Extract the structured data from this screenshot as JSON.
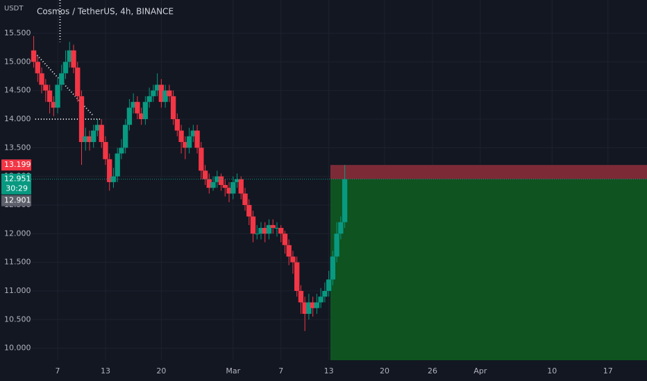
{
  "chart_data": {
    "type": "candlestick",
    "title": "Cosmos / TetherUS, 4h, BINANCE",
    "y_unit": "USDT",
    "up_color": "#089981",
    "down_color": "#f23645",
    "grid": true,
    "xlim": [
      3.69,
      80.9
    ],
    "ylim": [
      9.79,
      16.08
    ],
    "xticks": [
      7,
      13,
      20,
      {
        "value": 29,
        "label": "Mar"
      },
      {
        "value": 35,
        "label": "7"
      },
      {
        "value": 41,
        "label": "13"
      },
      {
        "value": 48,
        "label": "20"
      },
      {
        "value": 54,
        "label": "26"
      },
      {
        "value": 60,
        "label": "Apr"
      },
      {
        "value": 69,
        "label": "10"
      },
      {
        "value": 76,
        "label": "17"
      }
    ],
    "yticks": [
      {
        "value": 10,
        "label": "10.000"
      },
      {
        "value": 10.5,
        "label": "10.500"
      },
      {
        "value": 11,
        "label": "11.000"
      },
      {
        "value": 11.5,
        "label": "11.500"
      },
      {
        "value": 12,
        "label": "12.000"
      },
      {
        "value": 12.5,
        "label": "12.500"
      },
      {
        "value": 13,
        "label": "13.000"
      },
      {
        "value": 13.5,
        "label": "13.500"
      },
      {
        "value": 14,
        "label": "14.000"
      },
      {
        "value": 14.5,
        "label": "14.500"
      },
      {
        "value": 15,
        "label": "15.000"
      },
      {
        "value": 15.5,
        "label": "15.500"
      }
    ],
    "candles": {
      "x": [
        4,
        4.5,
        5,
        5.5,
        6,
        6.5,
        7,
        7.5,
        8,
        8.5,
        9,
        9.5,
        10,
        10.5,
        11,
        11.5,
        12,
        12.5,
        13,
        13.5,
        14,
        14.5,
        15,
        15.5,
        16,
        16.5,
        17,
        17.5,
        18,
        18.5,
        19,
        19.5,
        20,
        20.5,
        21,
        21.5,
        22,
        22.5,
        23,
        23.5,
        24,
        24.5,
        25,
        25.5,
        26,
        26.5,
        27,
        27.5,
        28,
        28.5,
        29,
        29.5,
        30,
        30.5,
        31,
        31.5,
        32,
        32.5,
        33,
        33.5,
        34,
        34.5,
        35,
        35.5,
        36,
        36.5,
        37,
        37.5,
        38,
        38.5,
        39,
        39.5,
        40,
        40.5,
        41,
        41.5,
        42,
        42.5,
        43
      ],
      "open": [
        15.2,
        15.0,
        14.8,
        14.6,
        14.5,
        14.3,
        14.2,
        14.6,
        14.8,
        15.0,
        15.2,
        14.9,
        14.4,
        13.6,
        13.7,
        13.6,
        13.8,
        13.9,
        13.6,
        13.3,
        12.9,
        13.0,
        13.4,
        13.5,
        13.9,
        14.2,
        14.3,
        14.1,
        14.0,
        14.3,
        14.4,
        14.5,
        14.6,
        14.3,
        14.5,
        14.4,
        14.0,
        13.8,
        13.6,
        13.5,
        13.7,
        13.8,
        13.5,
        13.1,
        12.95,
        12.8,
        12.9,
        13.0,
        12.85,
        12.8,
        12.7,
        12.9,
        12.95,
        12.7,
        12.5,
        12.3,
        12.0,
        12.0,
        12.1,
        12.0,
        12.15,
        12.1,
        12.1,
        12.0,
        11.8,
        11.6,
        11.5,
        11.0,
        10.8,
        10.6,
        10.8,
        10.7,
        10.8,
        10.9,
        11.0,
        11.2,
        11.6,
        12.0,
        12.2
      ],
      "high": [
        15.45,
        15.1,
        14.9,
        14.7,
        14.6,
        14.4,
        14.7,
        14.95,
        15.2,
        15.35,
        15.3,
        15.0,
        14.5,
        13.85,
        13.8,
        13.9,
        14.0,
        14.0,
        13.7,
        13.4,
        13.15,
        13.5,
        13.65,
        14.0,
        14.35,
        14.45,
        14.4,
        14.2,
        14.4,
        14.55,
        14.6,
        14.8,
        14.7,
        14.6,
        14.6,
        14.5,
        14.1,
        13.9,
        13.7,
        13.85,
        13.9,
        13.9,
        13.6,
        13.2,
        13.05,
        13.0,
        13.1,
        13.05,
        12.95,
        12.9,
        13.0,
        13.05,
        13.0,
        12.8,
        12.6,
        12.4,
        12.15,
        12.2,
        12.2,
        12.25,
        12.25,
        12.2,
        12.15,
        12.05,
        11.9,
        11.7,
        11.6,
        11.1,
        10.9,
        10.95,
        10.9,
        10.95,
        11.05,
        11.15,
        11.35,
        11.7,
        12.2,
        12.3,
        13.2
      ],
      "low": [
        14.9,
        14.65,
        14.45,
        14.3,
        14.1,
        14.05,
        14.1,
        14.5,
        14.7,
        14.9,
        14.8,
        14.3,
        13.2,
        13.45,
        13.45,
        13.5,
        13.7,
        13.5,
        13.2,
        12.75,
        12.8,
        12.9,
        13.3,
        13.4,
        13.8,
        14.1,
        14.0,
        13.9,
        13.9,
        14.2,
        14.3,
        14.4,
        14.2,
        14.2,
        14.3,
        13.9,
        13.7,
        13.4,
        13.3,
        13.4,
        13.6,
        13.4,
        12.95,
        12.85,
        12.7,
        12.75,
        12.8,
        12.75,
        12.65,
        12.55,
        12.6,
        12.8,
        12.6,
        12.4,
        12.15,
        11.85,
        11.9,
        11.9,
        11.85,
        11.9,
        12.0,
        11.95,
        11.85,
        11.65,
        11.45,
        11.3,
        10.9,
        10.6,
        10.3,
        10.5,
        10.55,
        10.6,
        10.7,
        10.8,
        10.9,
        11.1,
        11.5,
        11.9,
        12.1
      ],
      "close": [
        15.0,
        14.8,
        14.6,
        14.5,
        14.3,
        14.2,
        14.6,
        14.8,
        15.0,
        15.2,
        14.9,
        14.4,
        13.6,
        13.7,
        13.6,
        13.8,
        13.9,
        13.6,
        13.3,
        12.9,
        13.0,
        13.4,
        13.5,
        13.9,
        14.2,
        14.3,
        14.1,
        14.0,
        14.3,
        14.4,
        14.5,
        14.6,
        14.3,
        14.5,
        14.4,
        14.0,
        13.8,
        13.6,
        13.5,
        13.7,
        13.8,
        13.5,
        13.1,
        12.95,
        12.8,
        12.9,
        13.0,
        12.85,
        12.8,
        12.7,
        12.9,
        12.95,
        12.7,
        12.5,
        12.3,
        12.0,
        12.0,
        12.1,
        12.0,
        12.15,
        12.1,
        12.1,
        12.0,
        11.8,
        11.6,
        11.5,
        11.0,
        10.8,
        10.6,
        10.8,
        10.7,
        10.8,
        10.9,
        11.0,
        11.2,
        11.6,
        12.0,
        12.2,
        12.95
      ]
    },
    "position": {
      "start_x": 41.2,
      "stop": 13.199,
      "entry": 12.951,
      "target": 9.79,
      "stop_color": "#7c2b36",
      "target_color": "#0f5320"
    },
    "price_labels": [
      {
        "value": 13.199,
        "label": "13.199",
        "color": "#f23645"
      },
      {
        "value": 12.951,
        "label": "12.951",
        "countdown": "30:29",
        "color": "#089981"
      },
      {
        "value": 12.901,
        "label": "12.901",
        "color": "#5d606b"
      }
    ],
    "drawings": [
      {
        "x": [
          4.2,
          11.4
        ],
        "y": [
          15.15,
          14.07
        ]
      },
      {
        "x": [
          4.2,
          12.3
        ],
        "y": [
          14.0,
          14.0
        ]
      },
      {
        "x": [
          7.3,
          7.3
        ],
        "y": [
          16.08,
          15.35
        ]
      }
    ]
  }
}
